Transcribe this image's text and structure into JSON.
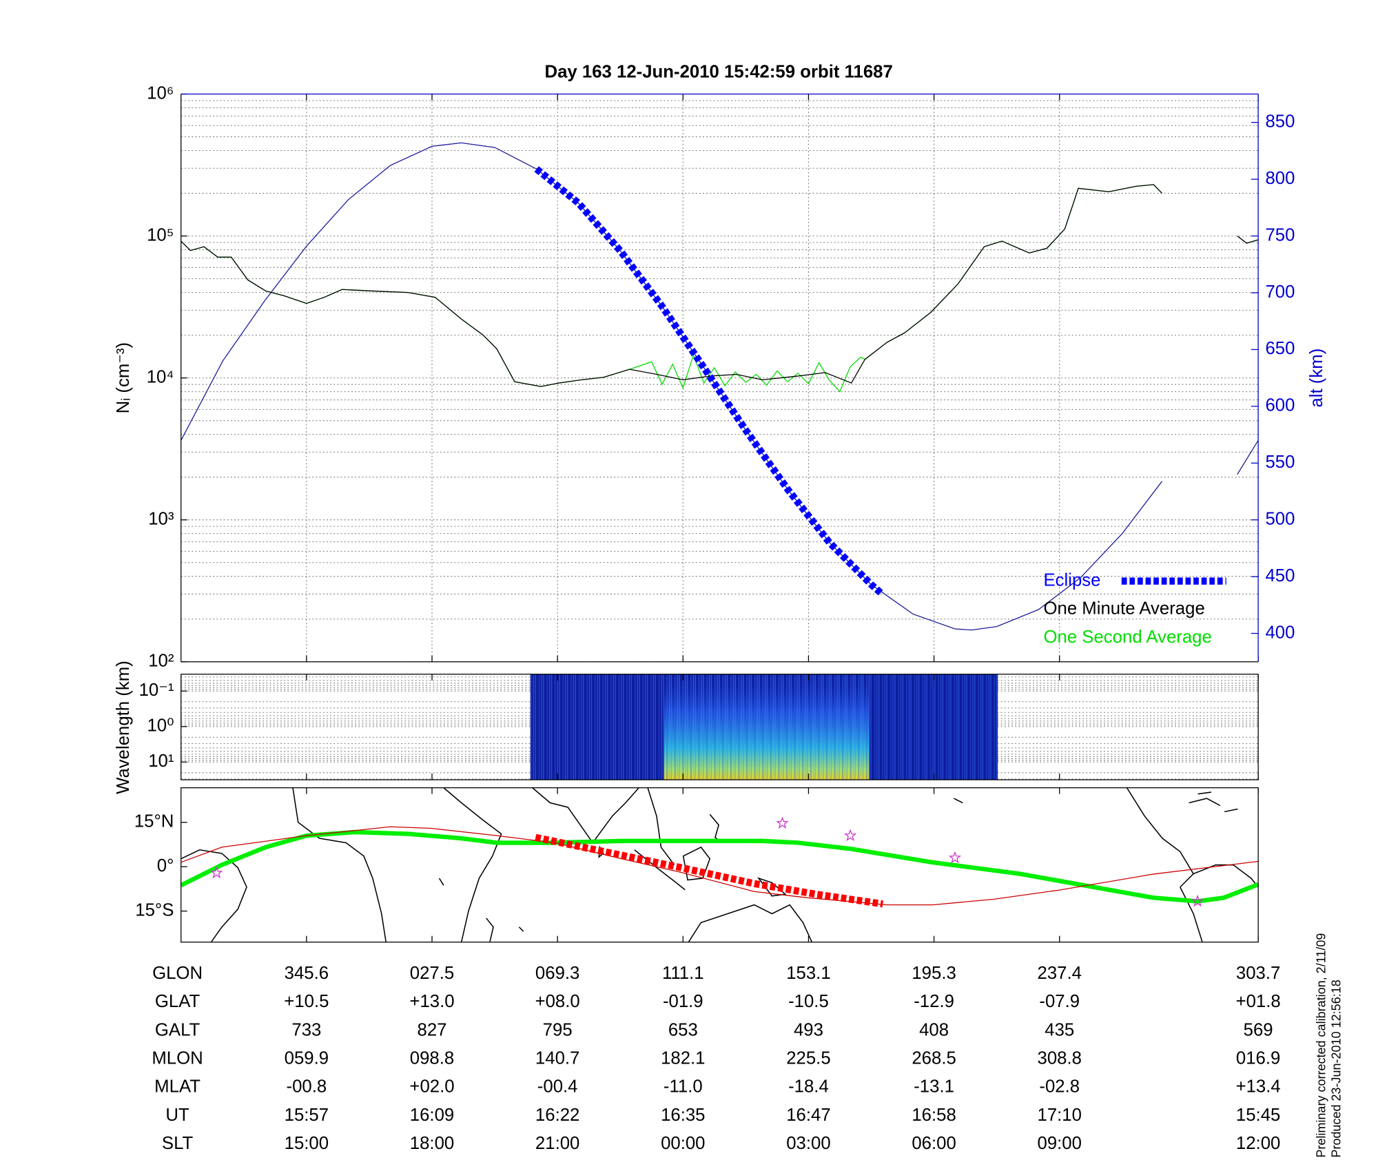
{
  "chart_data": [
    {
      "type": "line",
      "title": "Day 163  12-Jun-2010 15:42:59   orbit 11687",
      "ylabel": "Nᵢ (cm⁻³)",
      "y2label": "alt (km)",
      "log_y": true,
      "grid": true,
      "legend": "lower right",
      "xlim": [
        0,
        103
      ],
      "xticks": [
        12,
        24,
        36,
        48,
        60,
        72,
        84,
        103
      ],
      "ylim": [
        100,
        1000000
      ],
      "yticks": [
        {
          "value": 100,
          "label": "10²"
        },
        {
          "value": 1000,
          "label": "10³"
        },
        {
          "value": 10000,
          "label": "10⁴"
        },
        {
          "value": 100000,
          "label": "10⁵"
        },
        {
          "value": 1000000,
          "label": "10⁶"
        }
      ],
      "y2lim": [
        375,
        875
      ],
      "y2ticks": [
        400,
        450,
        500,
        550,
        600,
        650,
        700,
        750,
        800,
        850
      ],
      "series": [
        {
          "name": "Eclipse",
          "color": "#0000ff",
          "axis": "y2",
          "dashed": true,
          "x": [
            34,
            38,
            42,
            46,
            50,
            54,
            58,
            62,
            66,
            67
          ],
          "values": [
            809,
            779,
            737,
            688,
            634,
            579,
            527,
            480,
            443,
            435
          ]
        },
        {
          "name": "One Minute Average",
          "color": "#000000",
          "x": [
            0,
            0.9,
            2.2,
            3.5,
            4.8,
            6.4,
            8.1,
            9.8,
            12,
            13.7,
            15.4,
            18.3,
            21.7,
            24.3,
            26.8,
            28.9,
            30.2,
            31.9,
            34.4,
            36.1,
            38.3,
            40.4,
            42.9,
            45.5,
            48,
            50.6,
            53.1,
            55.6,
            59,
            61.6,
            64.1,
            65.4,
            67.5,
            69.2,
            71.7,
            74.3,
            76.8,
            78.5,
            81.1,
            82.8,
            84.5,
            85.8,
            88.7,
            91.3,
            93,
            93.8,
            97,
            101,
            101.9,
            103
          ],
          "values": [
            92000,
            79000,
            84000,
            71000,
            71000,
            49000,
            41000,
            38000,
            33500,
            37000,
            42000,
            41000,
            40000,
            37000,
            26000,
            20000,
            16000,
            9400,
            8700,
            9200,
            9700,
            10100,
            11500,
            10600,
            9700,
            10300,
            10600,
            9700,
            10300,
            10900,
            9200,
            13500,
            17800,
            20800,
            29000,
            46000,
            84000,
            92000,
            76000,
            82000,
            112000,
            217000,
            205000,
            224000,
            230000,
            200000,
            null,
            100000,
            89000,
            94000
          ]
        },
        {
          "name": "One Second Average",
          "color": "#00dd00",
          "x": [
            0,
            0.9,
            2.2,
            3.5,
            4.8,
            6.4,
            8.1,
            9.8,
            12,
            13.7,
            15.4,
            18.3,
            21.7,
            24.3,
            26.8,
            28.9,
            30.2,
            31.9,
            34.4,
            36.1,
            38.3,
            40.4,
            42.9,
            45,
            46,
            47,
            48,
            49,
            50,
            51,
            52,
            53,
            54,
            55,
            56,
            57,
            58,
            59,
            60,
            61,
            62,
            63,
            64,
            65,
            65.4,
            67.5,
            69.2,
            71.7,
            74.3,
            76.8,
            78.5,
            81.1,
            82.8,
            84.5,
            85.8,
            88.7,
            91.3,
            93,
            93.8,
            97,
            101,
            101.9,
            103
          ],
          "values": [
            92000,
            79000,
            84000,
            71000,
            71000,
            49000,
            41000,
            38000,
            33500,
            37000,
            42000,
            41000,
            40000,
            37000,
            26000,
            20000,
            16000,
            9400,
            8700,
            9200,
            9700,
            10100,
            11500,
            13000,
            9000,
            12500,
            8500,
            14500,
            9200,
            11800,
            8800,
            11000,
            9300,
            10600,
            8900,
            11200,
            9400,
            10800,
            9100,
            12800,
            9600,
            8000,
            12000,
            14000,
            13500,
            17800,
            20800,
            29000,
            46000,
            84000,
            92000,
            76000,
            82000,
            112000,
            217000,
            205000,
            224000,
            230000,
            200000,
            null,
            100000,
            89000,
            94000
          ]
        },
        {
          "color": "#1a1a99",
          "axis": "y2",
          "x": [
            0,
            4,
            8,
            12,
            16,
            20,
            24,
            26.8,
            30,
            34,
            38,
            42,
            46,
            50,
            54,
            58,
            62,
            66,
            70,
            74,
            75.6,
            78,
            82,
            86,
            90,
            93.8,
            97,
            101,
            103
          ],
          "values": [
            570,
            640,
            693,
            741,
            782,
            812,
            829,
            832,
            828,
            809,
            779,
            737,
            688,
            634,
            579,
            527,
            480,
            443,
            417,
            404,
            403,
            406,
            421,
            449,
            488,
            534,
            null,
            540,
            570
          ]
        }
      ]
    },
    {
      "type": "spectrogram",
      "ylabel": "Wavelength (km)",
      "log_y": true,
      "invert_y": true,
      "grid": true,
      "xlim": [
        0,
        103
      ],
      "ylim": [
        0.0335,
        31.6
      ],
      "yticks": [
        {
          "value": 0.1,
          "label": "10⁻¹"
        },
        {
          "value": 1,
          "label": "10⁰"
        },
        {
          "value": 10,
          "label": "10¹"
        }
      ],
      "extent": [
        33.4,
        78.1
      ],
      "active_extent": [
        46.2,
        65.8
      ]
    },
    {
      "type": "map",
      "xlim": [
        0,
        103
      ],
      "ylim": [
        -25.5,
        26.7
      ],
      "yticks": [
        {
          "value": 15,
          "label": "15°N"
        },
        {
          "value": 0,
          "label": "0°"
        },
        {
          "value": -15,
          "label": "15°S"
        }
      ],
      "series": [
        {
          "color": "#00ee00",
          "width": 5,
          "x": [
            0,
            3.9,
            8.1,
            12,
            16.6,
            21.7,
            26.8,
            30.2,
            35.3,
            42.1,
            50.6,
            55.6,
            59,
            64.1,
            71.8,
            80.2,
            88.7,
            93,
            97.2,
            99.7,
            103
          ],
          "values": [
            -6.3,
            0.6,
            6.6,
            10.5,
            11.7,
            11.1,
            9.6,
            8.1,
            8.1,
            8.7,
            8.7,
            8.7,
            8.1,
            6,
            1.5,
            -2.4,
            -7.8,
            -10.5,
            -11.7,
            -10.5,
            -6
          ]
        },
        {
          "color": "#cc0000",
          "width": 1,
          "x": [
            0,
            3.9,
            12,
            20,
            23.9,
            30.2,
            35.9,
            42.1,
            47.8,
            54.8,
            59.9,
            67.5,
            71.9,
            77.7,
            84,
            93,
            103
          ],
          "values": [
            1.5,
            6.6,
            10.5,
            13.5,
            13.0,
            10.5,
            8.0,
            2.7,
            -1.9,
            -8.4,
            -10.5,
            -12.9,
            -12.9,
            -11,
            -7.9,
            -2.5,
            1.8
          ]
        },
        {
          "color": "#ff0000",
          "width": 8,
          "dashed": true,
          "x": [
            33.9,
            42.1,
            47.8,
            54.8,
            60.7,
            67.1
          ],
          "values": [
            9.9,
            3.9,
            -0.3,
            -5.7,
            -9.3,
            -12.6
          ]
        }
      ],
      "markers": {
        "color": "#cc33cc",
        "x": [
          3.4,
          57.5,
          64,
          74,
          97.2
        ],
        "values": [
          -2.1,
          14.7,
          10.5,
          3,
          -11.7
        ]
      }
    }
  ],
  "table": {
    "rows": [
      {
        "label": "GLON",
        "values": [
          "345.6",
          "027.5",
          "069.3",
          "111.1",
          "153.1",
          "195.3",
          "237.4",
          "303.7"
        ]
      },
      {
        "label": "GLAT",
        "values": [
          "+10.5",
          "+13.0",
          "+08.0",
          "-01.9",
          "-10.5",
          "-12.9",
          "-07.9",
          "+01.8"
        ]
      },
      {
        "label": "GALT",
        "values": [
          "733",
          "827",
          "795",
          "653",
          "493",
          "408",
          "435",
          "569"
        ]
      },
      {
        "label": "MLON",
        "values": [
          "059.9",
          "098.8",
          "140.7",
          "182.1",
          "225.5",
          "268.5",
          "308.8",
          "016.9"
        ]
      },
      {
        "label": "MLAT",
        "values": [
          "-00.8",
          "+02.0",
          "-00.4",
          "-11.0",
          "-18.4",
          "-13.1",
          "-02.8",
          "+13.4"
        ]
      },
      {
        "label": "UT",
        "values": [
          "15:57",
          "16:09",
          "16:22",
          "16:35",
          "16:47",
          "16:58",
          "17:10",
          "15:45"
        ]
      },
      {
        "label": "SLT",
        "values": [
          "15:00",
          "18:00",
          "21:00",
          "00:00",
          "03:00",
          "06:00",
          "09:00",
          "12:00"
        ]
      }
    ]
  },
  "notes": [
    "Preliminary corrected calibration, 2/11/09",
    "Produced 23-Jun-2010 12:56:18"
  ]
}
